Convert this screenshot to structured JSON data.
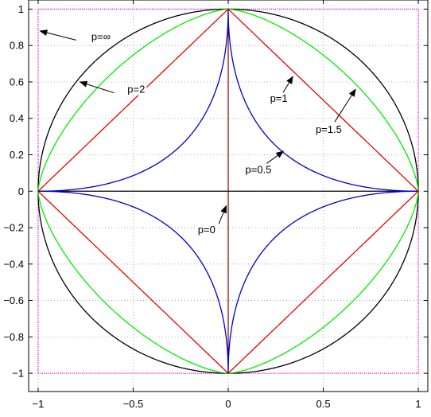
{
  "chart_data": {
    "type": "line",
    "title": "",
    "xlabel": "",
    "ylabel": "",
    "xlim": [
      -1.05,
      1.05
    ],
    "ylim": [
      -1.1,
      1.05
    ],
    "grid": true,
    "x_ticks": [
      -1,
      -0.5,
      0,
      0.5,
      1
    ],
    "x_tick_labels": [
      "−1",
      "−0.5",
      "0",
      "0.5",
      "1"
    ],
    "y_ticks": [
      1,
      0.8,
      0.6,
      0.4,
      0.2,
      0,
      -0.2,
      -0.4,
      -0.6,
      -0.8,
      -1
    ],
    "y_tick_labels": [
      "1",
      "0.8",
      "0.6",
      "0.4",
      "0.2",
      "0",
      "−0.2",
      "−0.4",
      "−0.6",
      "−0.8",
      "−1"
    ],
    "series": [
      {
        "p": "inf",
        "color": "#dd00dd",
        "dotted": true
      },
      {
        "p": 2,
        "color": "#000000",
        "dotted": false
      },
      {
        "p": 1.5,
        "color": "#00ee00",
        "dotted": false
      },
      {
        "p": 1,
        "color": "#ee0000",
        "dotted": false
      },
      {
        "p": 0.5,
        "color": "#0000cc",
        "dotted": false
      }
    ],
    "axis_lines": [
      {
        "from": [
          -1,
          0
        ],
        "to": [
          1,
          0
        ],
        "color": "#000000"
      },
      {
        "from": [
          0,
          -1
        ],
        "to": [
          0,
          1
        ],
        "color": "#8b0000"
      }
    ],
    "annotations": [
      {
        "text": "p=∞",
        "tip": [
          -0.99,
          0.88
        ],
        "tail": [
          -0.8,
          0.83
        ],
        "label_at": [
          -0.72,
          0.83
        ]
      },
      {
        "text": "p=2",
        "tip": [
          -0.78,
          0.6
        ],
        "tail": [
          -0.6,
          0.54
        ],
        "label_at": [
          -0.53,
          0.54
        ]
      },
      {
        "text": "p=1",
        "tip": [
          0.34,
          0.63
        ],
        "tail": [
          0.27,
          0.51
        ],
        "label_at": [
          0.22,
          0.49
        ]
      },
      {
        "text": "p=1.5",
        "tip": [
          0.67,
          0.56
        ],
        "tail": [
          0.56,
          0.38
        ],
        "label_at": [
          0.46,
          0.32
        ]
      },
      {
        "text": "p=0.5",
        "tip": [
          0.29,
          0.22
        ],
        "tail": [
          0.2,
          0.15
        ],
        "label_at": [
          0.09,
          0.1
        ]
      },
      {
        "text": "p=0",
        "tip": [
          -0.01,
          -0.08
        ],
        "tail": [
          -0.05,
          -0.18
        ],
        "label_at": [
          -0.16,
          -0.23
        ]
      }
    ]
  }
}
